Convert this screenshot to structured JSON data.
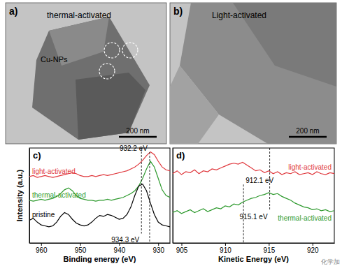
{
  "images": [
    {
      "label": "a)",
      "title": "thermal-activated",
      "annotation": "Cu-NPs",
      "scale_bar": "200 nm"
    },
    {
      "label": "b)",
      "title": "Light-activated",
      "scale_bar": "200 nm"
    }
  ],
  "watermark": "化学加",
  "chart_data": [
    {
      "type": "line",
      "title": "c)",
      "x_label": "Binding energy (eV)",
      "y_label": "Intensity (a.u.)",
      "tick_labels": "x",
      "xlim": [
        963,
        927
      ],
      "xticks": [
        960,
        950,
        940,
        930
      ],
      "ylim": [
        0,
        100
      ],
      "x": [
        963,
        962,
        961,
        960,
        959,
        958,
        957,
        956,
        955,
        954,
        953,
        952,
        951,
        950,
        949,
        948,
        947,
        946,
        945,
        944,
        943,
        942,
        941,
        940,
        939,
        938,
        937,
        936,
        935,
        934,
        933,
        932,
        931,
        930,
        929,
        928,
        927
      ],
      "series": [
        {
          "name": "light-activated",
          "color": "#e0393e",
          "values": [
            70,
            71,
            69,
            70,
            71,
            70,
            69,
            70,
            71,
            72,
            73,
            74,
            73,
            71,
            70,
            70,
            71,
            70,
            71,
            72,
            71,
            72,
            73,
            74,
            75,
            76,
            78,
            80,
            83,
            87,
            92,
            96,
            93,
            86,
            80,
            77,
            76
          ]
        },
        {
          "name": "thermal-activated",
          "color": "#2e9a2e",
          "values": [
            45,
            44,
            45,
            46,
            45,
            46,
            47,
            49,
            52,
            56,
            58,
            55,
            50,
            47,
            46,
            45,
            45,
            44,
            45,
            45,
            46,
            45,
            46,
            47,
            48,
            50,
            52,
            55,
            60,
            68,
            78,
            86,
            80,
            68,
            56,
            50,
            48
          ]
        },
        {
          "name": "pristine",
          "color": "#000000",
          "values": [
            24,
            26,
            22,
            19,
            18,
            17,
            18,
            22,
            28,
            32,
            30,
            25,
            21,
            19,
            18,
            19,
            22,
            26,
            29,
            28,
            30,
            29,
            27,
            25,
            26,
            30,
            38,
            50,
            60,
            62,
            55,
            42,
            30,
            22,
            19,
            18,
            17
          ]
        }
      ],
      "annotations": [
        {
          "text": "932.2 eV",
          "x": 932.2,
          "y": 100
        },
        {
          "text": "934.3 eV",
          "x": 934.3,
          "y": 4
        }
      ]
    },
    {
      "type": "line",
      "title": "d)",
      "x_label": "Kinetic Energy (eV)",
      "tick_labels": "x",
      "xlim": [
        904,
        922.5
      ],
      "xticks": [
        905,
        910,
        915,
        920
      ],
      "ylim": [
        0,
        100
      ],
      "x": [
        904,
        904.5,
        905,
        905.5,
        906,
        906.5,
        907,
        907.5,
        908,
        908.5,
        909,
        909.5,
        910,
        910.5,
        911,
        911.5,
        912,
        912.5,
        913,
        913.5,
        914,
        914.5,
        915,
        915.5,
        916,
        916.5,
        917,
        917.5,
        918,
        918.5,
        919,
        919.5,
        920,
        920.5,
        921,
        921.5,
        922,
        922.5
      ],
      "series": [
        {
          "name": "light-activated",
          "color": "#e0393e",
          "values": [
            73,
            76,
            72,
            75,
            74,
            77,
            73,
            76,
            75,
            78,
            77,
            79,
            81,
            83,
            84,
            83,
            85,
            82,
            79,
            76,
            77,
            74,
            76,
            73,
            75,
            72,
            74,
            73,
            75,
            72,
            73,
            74,
            72,
            75,
            73,
            72,
            74,
            73
          ]
        },
        {
          "name": "thermal-activated",
          "color": "#2e9a2e",
          "values": [
            32,
            34,
            31,
            33,
            35,
            32,
            34,
            36,
            33,
            35,
            37,
            36,
            39,
            38,
            41,
            40,
            43,
            45,
            47,
            48,
            50,
            51,
            53,
            51,
            52,
            49,
            47,
            45,
            42,
            40,
            38,
            37,
            35,
            36,
            34,
            35,
            33,
            34
          ]
        }
      ],
      "annotations": [
        {
          "text": "912.1 eV",
          "x": 912.1,
          "y": 66
        },
        {
          "text": "915.1 eV",
          "x": 915.1,
          "y": 28
        }
      ]
    }
  ]
}
